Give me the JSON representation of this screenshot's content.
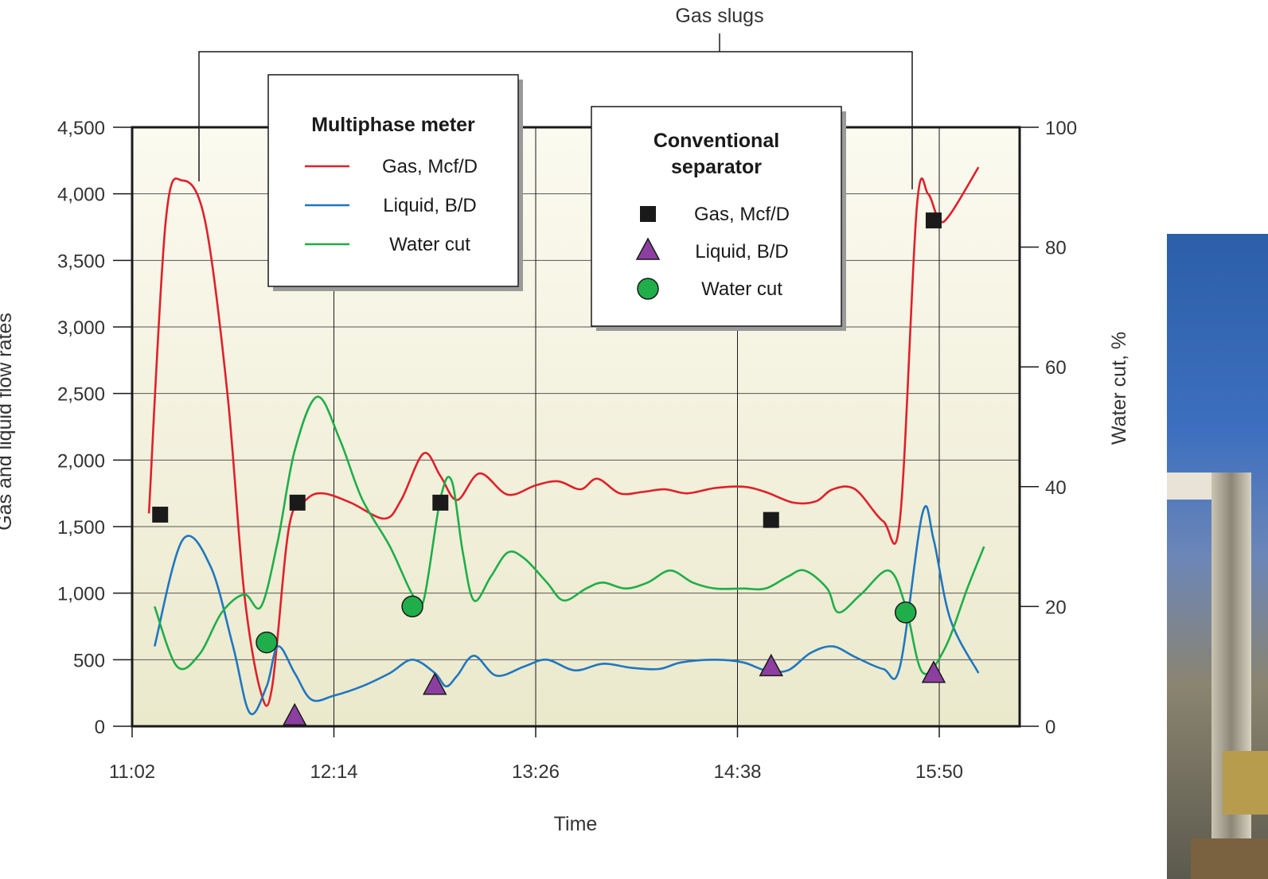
{
  "chart_data": {
    "type": "line",
    "annotation": "Gas slugs",
    "x_ticks": [
      "11:02",
      "12:14",
      "13:26",
      "14:38",
      "15:50"
    ],
    "xlabel": "Time",
    "ylabel_left": "Gas and liquid  flow rates",
    "ylabel_right": "Water cut, %",
    "y_left_ticks": [
      "0",
      "500",
      "1,000",
      "1,500",
      "2,000",
      "2,500",
      "3,000",
      "3,500",
      "4,000",
      "4,500"
    ],
    "y_right_ticks": [
      "0",
      "20",
      "40",
      "60",
      "80",
      "100"
    ],
    "ylim_left": [
      0,
      4500
    ],
    "ylim_right": [
      0,
      100
    ],
    "xlim": [
      "11:02",
      "16:10"
    ],
    "grid": true,
    "legends": [
      {
        "title": "Multiphase meter",
        "items": [
          {
            "label": "Gas, Mcf/D",
            "symbol": "line",
            "color": "#e0202a"
          },
          {
            "label": "Liquid, B/D",
            "symbol": "line",
            "color": "#1f77c0"
          },
          {
            "label": "Water cut",
            "symbol": "line",
            "color": "#1fae4a"
          }
        ]
      },
      {
        "title": "Conventional\nseparator",
        "items": [
          {
            "label": "Gas, Mcf/D",
            "symbol": "square",
            "color": "#1a1a1a"
          },
          {
            "label": "Liquid, B/D",
            "symbol": "triangle",
            "color": "#8c3fa0"
          },
          {
            "label": "Water cut",
            "symbol": "circle",
            "color": "#1fae4a"
          }
        ]
      }
    ],
    "series": [
      {
        "name": "Gas, Mcf/D",
        "kind": "meter",
        "axis": "left",
        "color": "#e0202a",
        "points": [
          [
            "11:08",
            1600
          ],
          [
            "11:14",
            3800
          ],
          [
            "11:20",
            4100
          ],
          [
            "11:28",
            3800
          ],
          [
            "11:36",
            2500
          ],
          [
            "11:42",
            1000
          ],
          [
            "11:48",
            250
          ],
          [
            "11:52",
            300
          ],
          [
            "11:58",
            1500
          ],
          [
            "12:04",
            1700
          ],
          [
            "12:10",
            1750
          ],
          [
            "12:20",
            1680
          ],
          [
            "12:32",
            1560
          ],
          [
            "12:38",
            1700
          ],
          [
            "12:46",
            2050
          ],
          [
            "12:52",
            1880
          ],
          [
            "12:58",
            1700
          ],
          [
            "13:06",
            1900
          ],
          [
            "13:16",
            1740
          ],
          [
            "13:26",
            1810
          ],
          [
            "13:34",
            1840
          ],
          [
            "13:42",
            1780
          ],
          [
            "13:48",
            1860
          ],
          [
            "13:56",
            1750
          ],
          [
            "14:04",
            1760
          ],
          [
            "14:12",
            1780
          ],
          [
            "14:20",
            1750
          ],
          [
            "14:30",
            1790
          ],
          [
            "14:40",
            1800
          ],
          [
            "14:48",
            1760
          ],
          [
            "14:58",
            1680
          ],
          [
            "15:06",
            1690
          ],
          [
            "15:12",
            1780
          ],
          [
            "15:20",
            1780
          ],
          [
            "15:30",
            1540
          ],
          [
            "15:36",
            1560
          ],
          [
            "15:42",
            3900
          ],
          [
            "15:46",
            4000
          ],
          [
            "15:50",
            3800
          ],
          [
            "15:54",
            3850
          ],
          [
            "16:04",
            4200
          ]
        ]
      },
      {
        "name": "Liquid, B/D",
        "kind": "meter",
        "axis": "left",
        "color": "#1f77c0",
        "points": [
          [
            "11:10",
            600
          ],
          [
            "11:20",
            1400
          ],
          [
            "11:30",
            1200
          ],
          [
            "11:38",
            600
          ],
          [
            "11:44",
            100
          ],
          [
            "11:50",
            300
          ],
          [
            "11:54",
            600
          ],
          [
            "12:00",
            400
          ],
          [
            "12:06",
            200
          ],
          [
            "12:14",
            230
          ],
          [
            "12:24",
            300
          ],
          [
            "12:34",
            400
          ],
          [
            "12:42",
            500
          ],
          [
            "12:50",
            400
          ],
          [
            "12:54",
            300
          ],
          [
            "12:58",
            380
          ],
          [
            "13:04",
            530
          ],
          [
            "13:12",
            380
          ],
          [
            "13:22",
            450
          ],
          [
            "13:30",
            500
          ],
          [
            "13:40",
            420
          ],
          [
            "13:50",
            470
          ],
          [
            "14:00",
            440
          ],
          [
            "14:10",
            430
          ],
          [
            "14:18",
            480
          ],
          [
            "14:30",
            500
          ],
          [
            "14:40",
            480
          ],
          [
            "14:48",
            420
          ],
          [
            "14:56",
            420
          ],
          [
            "15:04",
            550
          ],
          [
            "15:12",
            600
          ],
          [
            "15:20",
            520
          ],
          [
            "15:30",
            430
          ],
          [
            "15:36",
            450
          ],
          [
            "15:44",
            1600
          ],
          [
            "15:48",
            1400
          ],
          [
            "15:54",
            800
          ],
          [
            "16:04",
            400
          ]
        ]
      },
      {
        "name": "Water cut",
        "kind": "meter",
        "axis": "right",
        "color": "#1fae4a",
        "points": [
          [
            "11:10",
            20
          ],
          [
            "11:18",
            10
          ],
          [
            "11:26",
            12
          ],
          [
            "11:34",
            19
          ],
          [
            "11:42",
            22
          ],
          [
            "11:48",
            20
          ],
          [
            "11:54",
            31
          ],
          [
            "12:00",
            46
          ],
          [
            "12:08",
            55
          ],
          [
            "12:16",
            48
          ],
          [
            "12:24",
            38
          ],
          [
            "12:34",
            30
          ],
          [
            "12:42",
            22
          ],
          [
            "12:46",
            21
          ],
          [
            "12:52",
            38
          ],
          [
            "12:56",
            41
          ],
          [
            "13:00",
            29
          ],
          [
            "13:04",
            21
          ],
          [
            "13:10",
            25
          ],
          [
            "13:16",
            29
          ],
          [
            "13:22",
            28
          ],
          [
            "13:30",
            24
          ],
          [
            "13:36",
            21
          ],
          [
            "13:44",
            23
          ],
          [
            "13:50",
            24
          ],
          [
            "13:58",
            23
          ],
          [
            "14:06",
            24
          ],
          [
            "14:14",
            26
          ],
          [
            "14:22",
            24
          ],
          [
            "14:30",
            23
          ],
          [
            "14:40",
            23
          ],
          [
            "14:48",
            23
          ],
          [
            "14:56",
            25
          ],
          [
            "15:02",
            26
          ],
          [
            "15:10",
            23
          ],
          [
            "15:14",
            19
          ],
          [
            "15:22",
            22
          ],
          [
            "15:32",
            26
          ],
          [
            "15:38",
            20
          ],
          [
            "15:44",
            9
          ],
          [
            "15:52",
            13
          ],
          [
            "16:00",
            23
          ],
          [
            "16:06",
            30
          ]
        ]
      },
      {
        "name": "Gas, Mcf/D",
        "kind": "separator",
        "axis": "left",
        "color": "#1a1a1a",
        "symbol": "square",
        "points": [
          [
            "11:12",
            1590
          ],
          [
            "12:01",
            1680
          ],
          [
            "12:52",
            1680
          ],
          [
            "14:50",
            1550
          ],
          [
            "15:48",
            3800
          ]
        ]
      },
      {
        "name": "Liquid, B/D",
        "kind": "separator",
        "axis": "left",
        "color": "#8c3fa0",
        "symbol": "triangle",
        "points": [
          [
            "12:00",
            70
          ],
          [
            "12:50",
            300
          ],
          [
            "14:50",
            440
          ],
          [
            "15:48",
            390
          ]
        ]
      },
      {
        "name": "Water cut",
        "kind": "separator",
        "axis": "right",
        "color": "#1fae4a",
        "symbol": "circle",
        "points": [
          [
            "11:50",
            14
          ],
          [
            "12:42",
            20
          ],
          [
            "15:38",
            19
          ]
        ]
      }
    ]
  }
}
